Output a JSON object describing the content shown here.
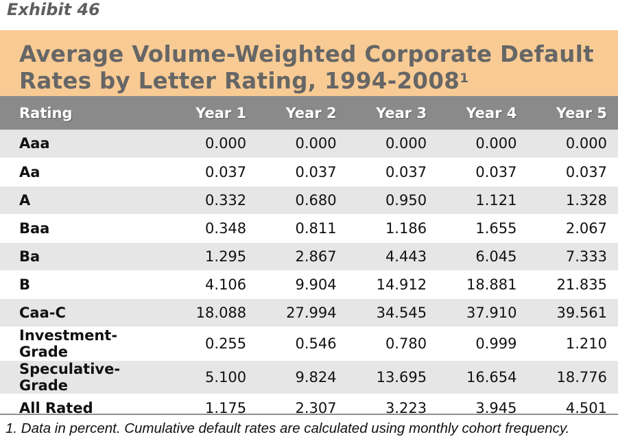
{
  "exhibit": {
    "label": "Exhibit 46"
  },
  "title": {
    "line1": "Average Volume-Weighted Corporate Default",
    "line2": "Rates by Letter Rating, 1994-2008",
    "footnote_marker": "1"
  },
  "table": {
    "columns": [
      "Rating",
      "Year 1",
      "Year 2",
      "Year 3",
      "Year 4",
      "Year 5"
    ],
    "rows": [
      {
        "rating": "Aaa",
        "values": [
          "0.000",
          "0.000",
          "0.000",
          "0.000",
          "0.000"
        ]
      },
      {
        "rating": "Aa",
        "values": [
          "0.037",
          "0.037",
          "0.037",
          "0.037",
          "0.037"
        ]
      },
      {
        "rating": "A",
        "values": [
          "0.332",
          "0.680",
          "0.950",
          "1.121",
          "1.328"
        ]
      },
      {
        "rating": "Baa",
        "values": [
          "0.348",
          "0.811",
          "1.186",
          "1.655",
          "2.067"
        ]
      },
      {
        "rating": "Ba",
        "values": [
          "1.295",
          "2.867",
          "4.443",
          "6.045",
          "7.333"
        ]
      },
      {
        "rating": "B",
        "values": [
          "4.106",
          "9.904",
          "14.912",
          "18.881",
          "21.835"
        ]
      },
      {
        "rating": "Caa-C",
        "values": [
          "18.088",
          "27.994",
          "34.545",
          "37.910",
          "39.561"
        ]
      },
      {
        "rating": "Investment-Grade",
        "values": [
          "0.255",
          "0.546",
          "0.780",
          "0.999",
          "1.210"
        ]
      },
      {
        "rating": "Speculative-Grade",
        "values": [
          "5.100",
          "9.824",
          "13.695",
          "16.654",
          "18.776"
        ]
      },
      {
        "rating": "All Rated",
        "values": [
          "1.175",
          "2.307",
          "3.223",
          "3.945",
          "4.501"
        ]
      }
    ]
  },
  "footnote": "1. Data in percent. Cumulative default rates are calculated using monthly cohort frequency.",
  "colors": {
    "title_band": "#f8cb94",
    "title_text": "#666666",
    "header_row": "#8a8a8a",
    "shaded_row": "#e6e6e6"
  }
}
